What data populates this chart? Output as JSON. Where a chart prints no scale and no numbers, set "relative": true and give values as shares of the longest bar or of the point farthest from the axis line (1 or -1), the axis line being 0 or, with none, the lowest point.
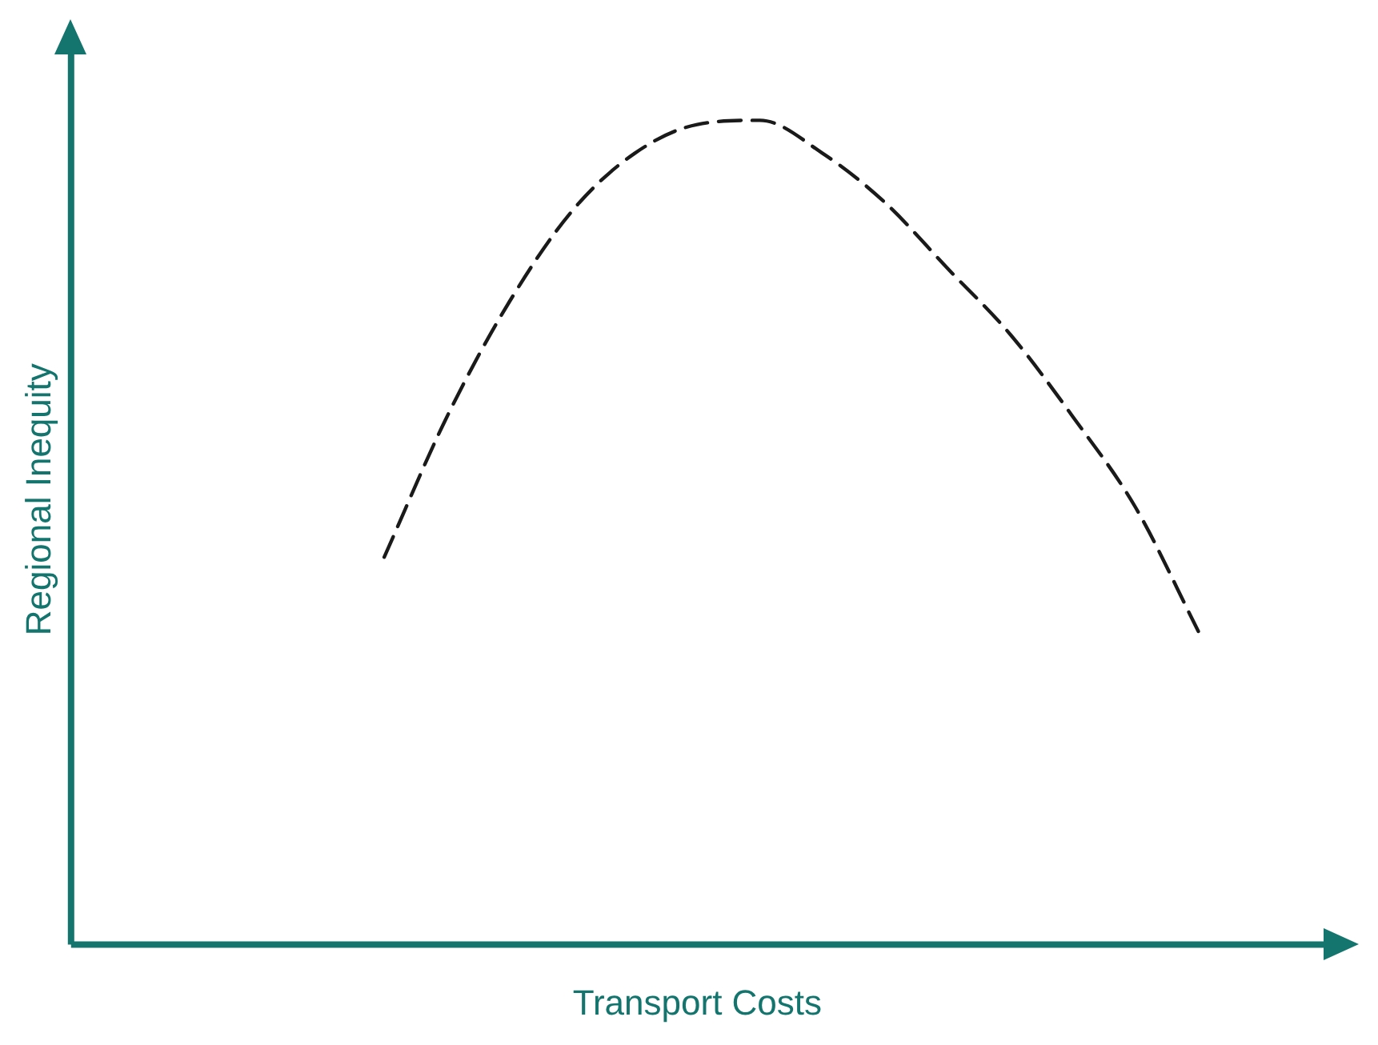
{
  "chart_data": {
    "type": "line",
    "relative": true,
    "xlabel": "Transport Costs",
    "ylabel": "Regional Inequity",
    "categories": [
      null,
      null,
      null,
      null,
      null,
      null,
      null,
      null,
      null,
      null,
      null,
      null,
      null,
      null,
      null,
      null,
      null,
      null,
      null,
      null,
      null
    ],
    "series": [
      {
        "color": "#1a1a1a",
        "values": [
          null,
          null,
          null,
          null,
          null,
          0.47,
          0.64,
          0.78,
          0.89,
          0.96,
          0.995,
          1.0,
          0.96,
          0.9,
          0.82,
          0.74,
          0.64,
          0.53,
          0.38,
          null,
          null
        ]
      }
    ],
    "line_style": "dashed",
    "marker": "none",
    "grid": false,
    "legend": false
  }
}
